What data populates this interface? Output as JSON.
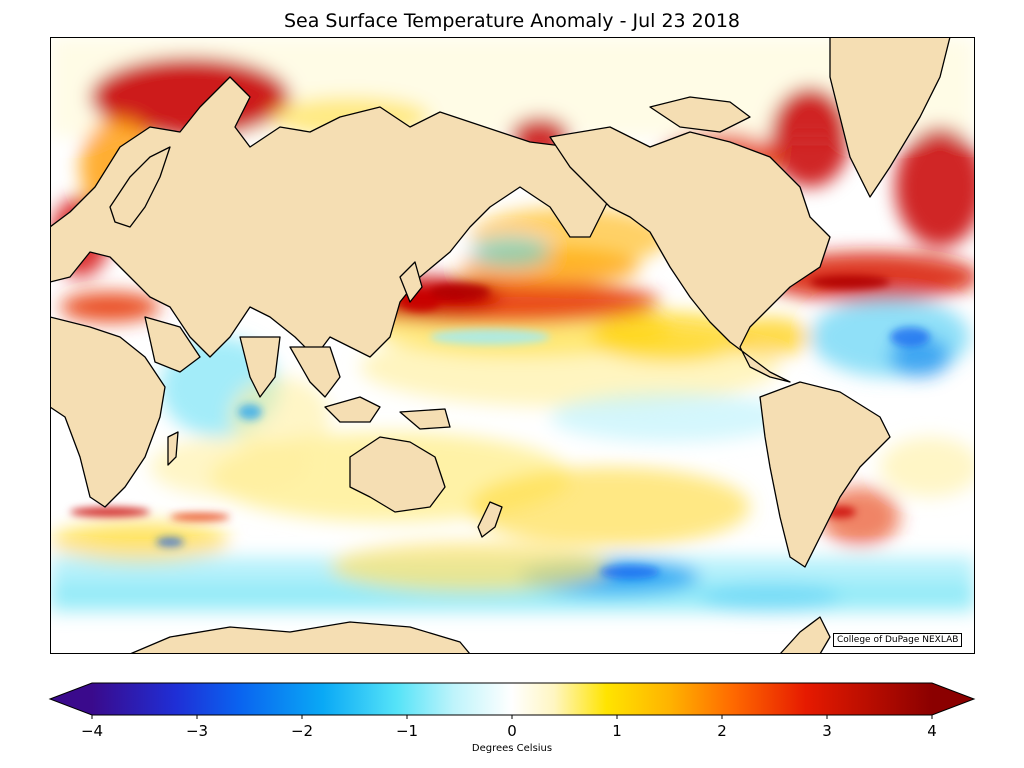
{
  "title": "Sea Surface Temperature Anomaly - Jul 23 2018",
  "credit": "College of DuPage NEXLAB",
  "colorbar": {
    "label": "Degrees Celsius",
    "min": -4,
    "max": 4,
    "ticks": [
      "−4",
      "−3",
      "−2",
      "−1",
      "0",
      "1",
      "2",
      "3",
      "4"
    ],
    "stops": [
      {
        "v": -4,
        "c": "#3a0a8c"
      },
      {
        "v": -3.2,
        "c": "#1f2fd6"
      },
      {
        "v": -2.6,
        "c": "#0a63f0"
      },
      {
        "v": -1.8,
        "c": "#0aa9f5"
      },
      {
        "v": -1.1,
        "c": "#55e3f8"
      },
      {
        "v": -0.55,
        "c": "#bff4fb"
      },
      {
        "v": 0,
        "c": "#ffffff"
      },
      {
        "v": 0.4,
        "c": "#fff6c2"
      },
      {
        "v": 0.9,
        "c": "#ffe400"
      },
      {
        "v": 1.5,
        "c": "#ffb300"
      },
      {
        "v": 2.1,
        "c": "#ff6a00"
      },
      {
        "v": 2.8,
        "c": "#e61a00"
      },
      {
        "v": 4,
        "c": "#8b0000"
      }
    ]
  },
  "legend_colors": {
    "land": "#f5deb3",
    "ocean_neutral": "#ffffff",
    "coast": "#000000",
    "borders": "#888888"
  }
}
